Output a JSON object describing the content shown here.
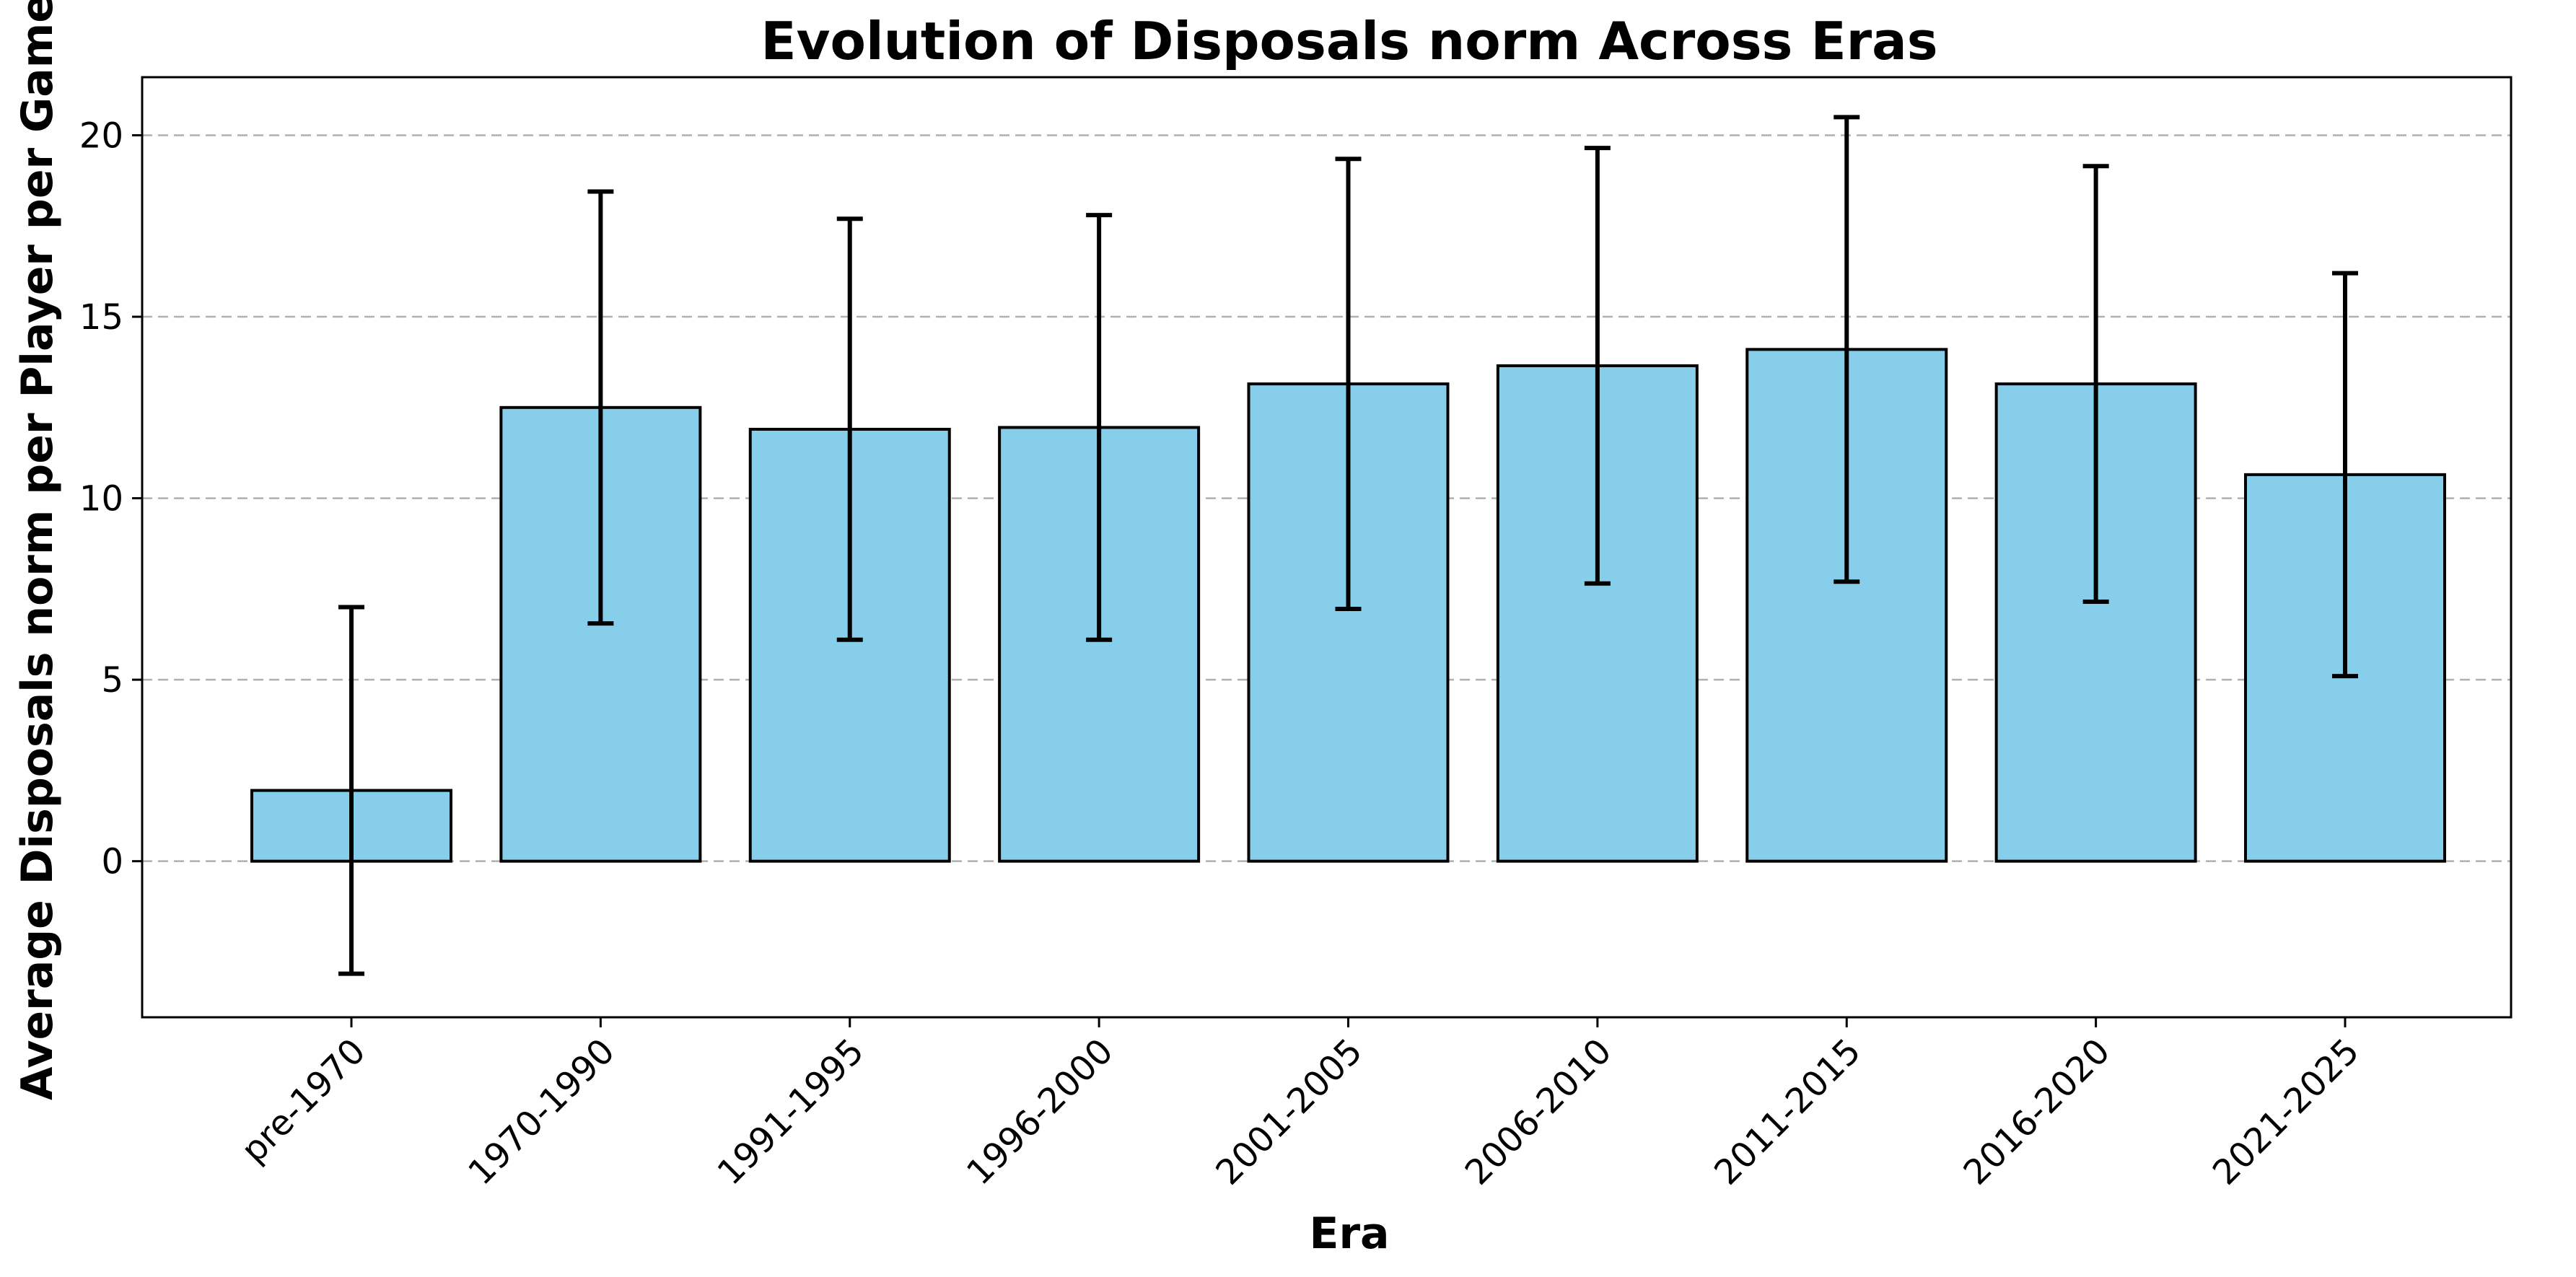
{
  "chart_data": {
    "type": "bar",
    "title": "Evolution of Disposals norm Across Eras",
    "xlabel": "Era",
    "ylabel": "Average Disposals norm per Player per Game",
    "categories": [
      "pre-1970",
      "1970-1990",
      "1991-1995",
      "1996-2000",
      "2001-2005",
      "2006-2010",
      "2011-2015",
      "2016-2020",
      "2021-2025"
    ],
    "values": [
      1.95,
      12.5,
      11.9,
      11.95,
      13.15,
      13.65,
      14.1,
      13.15,
      10.65
    ],
    "error": [
      5.05,
      5.95,
      5.8,
      5.85,
      6.2,
      6.0,
      6.4,
      6.0,
      5.55
    ],
    "ylim": [
      -4.3,
      21.6
    ],
    "yticks": [
      0,
      5,
      10,
      15,
      20
    ],
    "grid": true,
    "bar_color": "#87CEEB",
    "edge_color": "#000000"
  }
}
